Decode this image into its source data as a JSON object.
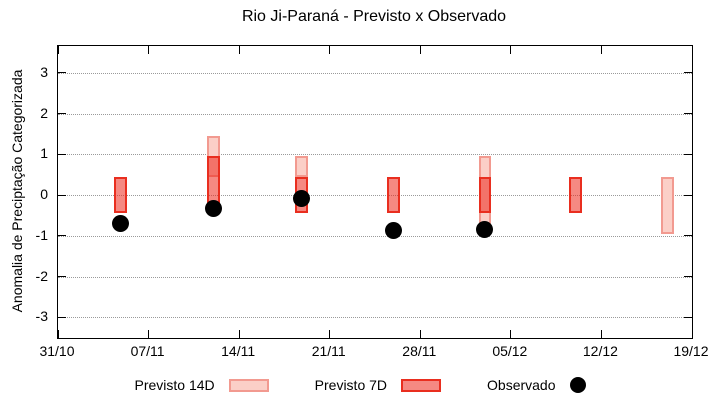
{
  "title": "Rio Ji-Paraná - Previsto x Observado",
  "legend": {
    "previsto14_label": "Previsto 14D",
    "previsto7_label": "Previsto 7D",
    "observado_label": "Observado"
  },
  "colors": {
    "previsto14_fill": "#fbcfc7",
    "previsto14_border": "#f29a90",
    "previsto7_fill": "#f5837b",
    "previsto7_border": "#e92e1f",
    "overlap_fill": "#f37369",
    "observado": "#000000",
    "grid": "#9a9a9a"
  },
  "chart_data": {
    "type": "bar",
    "title": "Rio Ji-Paraná - Previsto x Observado",
    "xlabel": "",
    "ylabel": "Anomalia de Preciptação Categorizada",
    "ylim": [
      -3.51,
      3.66
    ],
    "y_ticks": [
      3,
      2,
      1,
      0,
      -1,
      -2,
      -3
    ],
    "grid": "horizontal dotted at integer y values",
    "legend_position": "bottom center, outside plot",
    "x_axis": {
      "total_days": 49,
      "ticks": [
        {
          "day": 0,
          "label": "31/10"
        },
        {
          "day": 7,
          "label": "07/11"
        },
        {
          "day": 14,
          "label": "14/11"
        },
        {
          "day": 21,
          "label": "21/11"
        },
        {
          "day": 28,
          "label": "28/11"
        },
        {
          "day": 35,
          "label": "05/12"
        },
        {
          "day": 42,
          "label": "12/12"
        },
        {
          "day": 49,
          "label": "19/12"
        }
      ]
    },
    "bar_width_days": 1.0,
    "series_notes": "previsto ranges are [top,bottom] category-boundary values; 7D drawn semi-transparent over 14D so overlaps appear darker",
    "groups": [
      {
        "date": "05/11",
        "day": 4.85,
        "previsto14": null,
        "previsto7": [
          0.45,
          -0.45
        ],
        "observado": -0.7
      },
      {
        "date": "12/11",
        "day": 12.0,
        "previsto14": [
          1.45,
          0.45
        ],
        "previsto7": [
          0.95,
          -0.45
        ],
        "observado": -0.33
      },
      {
        "date": "19/11",
        "day": 18.85,
        "previsto14": [
          0.95,
          0.45
        ],
        "previsto7": [
          0.45,
          -0.45
        ],
        "observado": -0.08
      },
      {
        "date": "26/11",
        "day": 25.9,
        "previsto14": null,
        "previsto7": [
          0.45,
          -0.45
        ],
        "observado": -0.86
      },
      {
        "date": "03/12",
        "day": 33.0,
        "previsto14": [
          0.95,
          -0.95
        ],
        "previsto7": [
          0.45,
          -0.45
        ],
        "observado": -0.84
      },
      {
        "date": "10/12",
        "day": 40.0,
        "previsto14": null,
        "previsto7": [
          0.45,
          -0.45
        ],
        "observado": null
      },
      {
        "date": "17/12",
        "day": 47.1,
        "previsto14": [
          0.45,
          -0.95
        ],
        "previsto7": null,
        "observado": null
      }
    ]
  }
}
